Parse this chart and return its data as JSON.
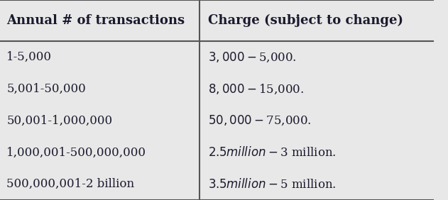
{
  "headers": [
    "Annual # of transactions",
    "Charge (subject to change)"
  ],
  "rows": [
    [
      "1-5,000",
      "$3,000-$5,000."
    ],
    [
      "5,001-50,000",
      "$8,000-$15,000."
    ],
    [
      "50,001-1,000,000",
      "$50,000-$75,000."
    ],
    [
      "1,000,001-500,000,000",
      "$2.5 million-$3 million."
    ],
    [
      "500,000,001-2 billion",
      "$3.5 million-$5 million."
    ]
  ],
  "bg_color": "#e8e8e8",
  "text_color": "#1a1a2e",
  "border_color": "#555555",
  "header_font_size": 13,
  "row_font_size": 12,
  "col_split": 0.46,
  "fig_width": 6.31,
  "fig_height": 2.82,
  "font_family": "serif"
}
